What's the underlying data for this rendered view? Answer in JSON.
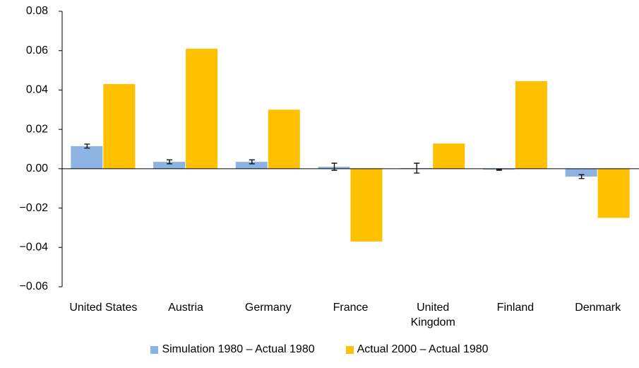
{
  "chart_data": {
    "type": "bar",
    "categories": [
      "United States",
      "Austria",
      "Germany",
      "France",
      "United Kingdom",
      "Finland",
      "Denmark"
    ],
    "series": [
      {
        "name": "Simulation 1980 – Actual 1980",
        "color": "#8db3e2",
        "values": [
          0.0115,
          0.0035,
          0.0035,
          0.001,
          0.0003,
          -0.0005,
          -0.004
        ],
        "errors": [
          0.001,
          0.001,
          0.001,
          0.0018,
          0.0025,
          0.0003,
          0.001
        ]
      },
      {
        "name": "Actual 2000 – Actual 1980",
        "color": "#ffc000",
        "values": [
          0.043,
          0.061,
          0.03,
          -0.037,
          0.0128,
          0.0445,
          -0.025
        ]
      }
    ],
    "ylim": [
      -0.06,
      0.08
    ],
    "yticks": [
      {
        "value": -0.06,
        "label": "−0.06"
      },
      {
        "value": -0.04,
        "label": "−0.04"
      },
      {
        "value": -0.02,
        "label": "−0.02"
      },
      {
        "value": 0,
        "label": "0.00"
      },
      0.02,
      0.04,
      0.06,
      0.08
    ],
    "grid": false,
    "legend": "bottom"
  }
}
